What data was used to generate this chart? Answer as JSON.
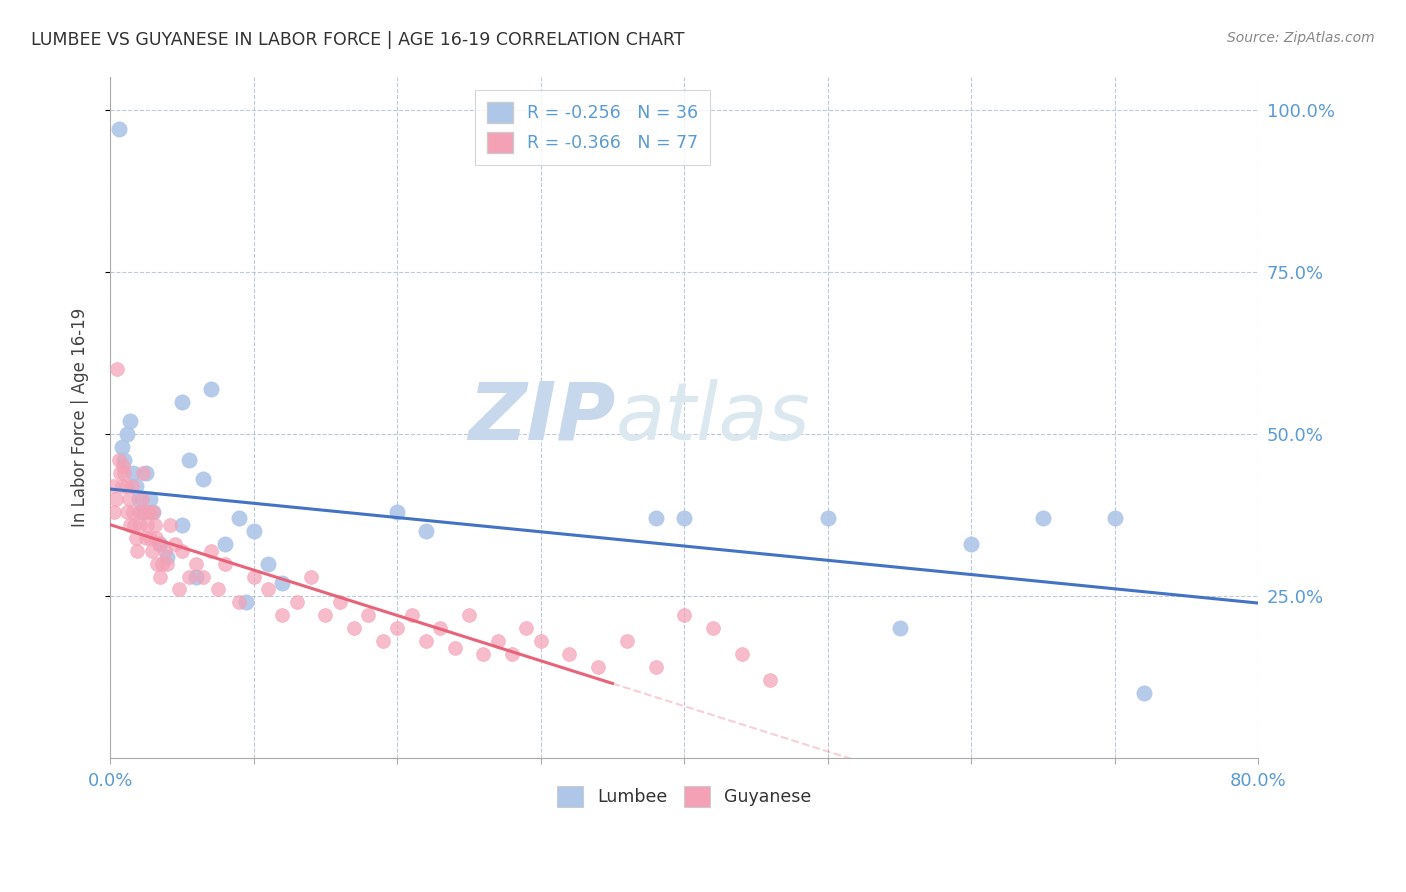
{
  "title": "LUMBEE VS GUYANESE IN LABOR FORCE | AGE 16-19 CORRELATION CHART",
  "source": "Source: ZipAtlas.com",
  "ylabel": "In Labor Force | Age 16-19",
  "xlim": [
    0.0,
    0.8
  ],
  "ylim": [
    0.0,
    1.05
  ],
  "lumbee_R": -0.256,
  "lumbee_N": 36,
  "guyanese_R": -0.366,
  "guyanese_N": 77,
  "lumbee_color": "#aec6e8",
  "guyanese_color": "#f4a0b5",
  "lumbee_line_color": "#4472c4",
  "guyanese_line_color": "#e8637a",
  "watermark_zip": "ZIP",
  "watermark_atlas": "atlas",
  "watermark_color": "#c8d8ec",
  "lumbee_x": [
    0.006,
    0.008,
    0.01,
    0.012,
    0.014,
    0.016,
    0.018,
    0.02,
    0.022,
    0.025,
    0.028,
    0.03,
    0.035,
    0.04,
    0.05,
    0.055,
    0.06,
    0.065,
    0.07,
    0.08,
    0.09,
    0.1,
    0.11,
    0.12,
    0.2,
    0.22,
    0.38,
    0.4,
    0.5,
    0.55,
    0.6,
    0.65,
    0.7,
    0.72,
    0.05,
    0.095
  ],
  "lumbee_y": [
    0.97,
    0.48,
    0.46,
    0.5,
    0.52,
    0.44,
    0.42,
    0.4,
    0.38,
    0.44,
    0.4,
    0.38,
    0.33,
    0.31,
    0.55,
    0.46,
    0.28,
    0.43,
    0.57,
    0.33,
    0.37,
    0.35,
    0.3,
    0.27,
    0.38,
    0.35,
    0.37,
    0.37,
    0.37,
    0.2,
    0.33,
    0.37,
    0.37,
    0.1,
    0.36,
    0.24
  ],
  "guyanese_x": [
    0.002,
    0.003,
    0.004,
    0.005,
    0.006,
    0.007,
    0.008,
    0.009,
    0.01,
    0.011,
    0.012,
    0.013,
    0.014,
    0.015,
    0.016,
    0.017,
    0.018,
    0.019,
    0.02,
    0.021,
    0.022,
    0.023,
    0.024,
    0.025,
    0.026,
    0.027,
    0.028,
    0.029,
    0.03,
    0.031,
    0.032,
    0.033,
    0.034,
    0.035,
    0.036,
    0.038,
    0.04,
    0.042,
    0.045,
    0.048,
    0.05,
    0.055,
    0.06,
    0.065,
    0.07,
    0.075,
    0.08,
    0.09,
    0.1,
    0.11,
    0.12,
    0.13,
    0.14,
    0.15,
    0.16,
    0.17,
    0.18,
    0.19,
    0.2,
    0.21,
    0.22,
    0.23,
    0.24,
    0.25,
    0.26,
    0.27,
    0.28,
    0.29,
    0.3,
    0.32,
    0.34,
    0.36,
    0.38,
    0.4,
    0.42,
    0.44,
    0.46
  ],
  "guyanese_y": [
    0.42,
    0.38,
    0.4,
    0.6,
    0.46,
    0.44,
    0.42,
    0.45,
    0.44,
    0.42,
    0.38,
    0.4,
    0.36,
    0.42,
    0.38,
    0.36,
    0.34,
    0.32,
    0.38,
    0.36,
    0.4,
    0.44,
    0.38,
    0.34,
    0.36,
    0.38,
    0.34,
    0.32,
    0.38,
    0.36,
    0.34,
    0.3,
    0.33,
    0.28,
    0.3,
    0.32,
    0.3,
    0.36,
    0.33,
    0.26,
    0.32,
    0.28,
    0.3,
    0.28,
    0.32,
    0.26,
    0.3,
    0.24,
    0.28,
    0.26,
    0.22,
    0.24,
    0.28,
    0.22,
    0.24,
    0.2,
    0.22,
    0.18,
    0.2,
    0.22,
    0.18,
    0.2,
    0.17,
    0.22,
    0.16,
    0.18,
    0.16,
    0.2,
    0.18,
    0.16,
    0.14,
    0.18,
    0.14,
    0.22,
    0.2,
    0.16,
    0.12
  ],
  "line_intercept_lumbee": 0.415,
  "line_slope_lumbee": -0.22,
  "line_intercept_guyanese": 0.36,
  "line_slope_guyanese": -0.7
}
